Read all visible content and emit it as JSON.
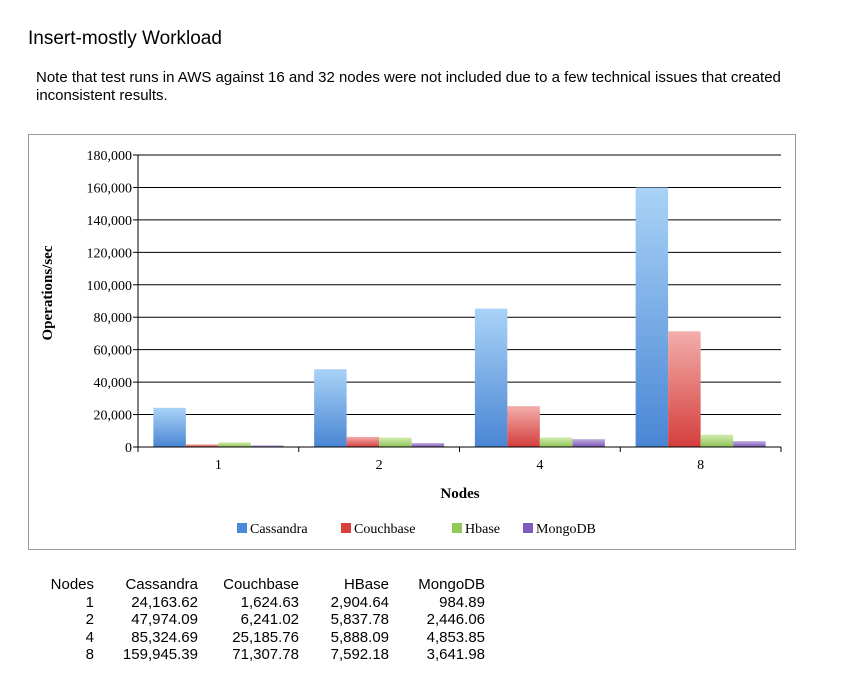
{
  "heading": "Insert-mostly Workload",
  "note": "Note that test runs in AWS against 16 and 32 nodes were not included due to a few technical issues that created inconsistent results.",
  "chart_data": {
    "type": "bar",
    "title": "",
    "xlabel": "Nodes",
    "ylabel": "Operations/sec",
    "categories": [
      "1",
      "2",
      "4",
      "8"
    ],
    "ylim": [
      0,
      180000
    ],
    "yticks": [
      0,
      20000,
      40000,
      60000,
      80000,
      100000,
      120000,
      140000,
      160000,
      180000
    ],
    "ytick_labels": [
      "0",
      "20,000",
      "40,000",
      "60,000",
      "80,000",
      "100,000",
      "120,000",
      "140,000",
      "160,000",
      "180,000"
    ],
    "grid": true,
    "legend_position": "bottom",
    "series": [
      {
        "name": "Cassandra",
        "values": [
          24163.62,
          47974.09,
          85324.69,
          159945.39
        ],
        "color_top": "#a9d3f7",
        "color_bottom": "#4a86d4",
        "legend_color": "#4a8ad6"
      },
      {
        "name": "Couchbase",
        "values": [
          1624.63,
          6241.02,
          25185.76,
          71307.78
        ],
        "color_top": "#f2aeab",
        "color_bottom": "#d53e3c",
        "legend_color": "#d9413d"
      },
      {
        "name": "Hbase",
        "values": [
          2904.64,
          5837.78,
          5888.09,
          7592.18
        ],
        "color_top": "#d2ecb0",
        "color_bottom": "#8fc456",
        "legend_color": "#93c95a"
      },
      {
        "name": "MongoDB",
        "values": [
          984.89,
          2446.06,
          4853.85,
          3641.98
        ],
        "color_top": "#c2aedf",
        "color_bottom": "#7a56b8",
        "legend_color": "#7e5bbb"
      }
    ]
  },
  "table": {
    "headers": [
      "Nodes",
      "Cassandra",
      "Couchbase",
      "HBase",
      "MongoDB"
    ],
    "rows": [
      [
        "1",
        "24,163.62",
        "1,624.63",
        "2,904.64",
        "984.89"
      ],
      [
        "2",
        "47,974.09",
        "6,241.02",
        "5,837.78",
        "2,446.06"
      ],
      [
        "4",
        "85,324.69",
        "25,185.76",
        "5,888.09",
        "4,853.85"
      ],
      [
        "8",
        "159,945.39",
        "71,307.78",
        "7,592.18",
        "3,641.98"
      ]
    ]
  }
}
